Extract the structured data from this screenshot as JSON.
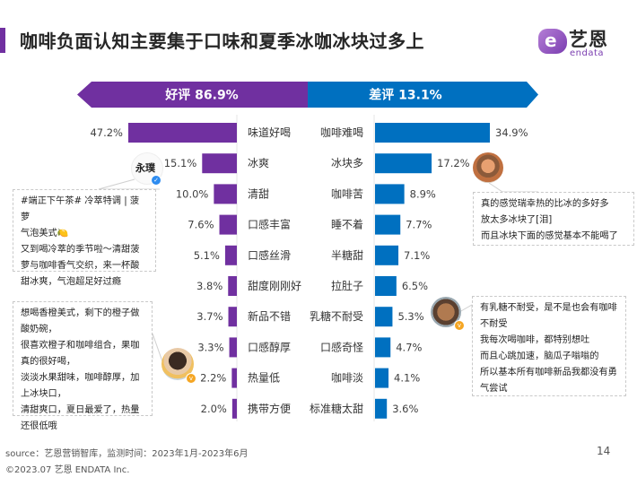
{
  "header": {
    "title": "咖啡负面认知主要集于口味和夏季冰咖冰块过多上",
    "logo_cn": "艺恩",
    "logo_en": "endata",
    "logo_glyph": "e"
  },
  "colors": {
    "positive": "#7030a0",
    "negative": "#0070c0",
    "accent": "#7030a0"
  },
  "chart_data": [
    {
      "type": "bar",
      "orientation": "horizontal",
      "title": "好评 86.9%",
      "banner_label": "好评",
      "banner_value": "86.9%",
      "share_percent": 86.9,
      "direction": "left",
      "categories": [
        "味道好喝",
        "冰爽",
        "清甜",
        "口感丰富",
        "口感丝滑",
        "甜度刚刚好",
        "新品不错",
        "口感醇厚",
        "热量低",
        "携带方便"
      ],
      "values": [
        47.2,
        15.1,
        10.0,
        7.6,
        5.1,
        3.8,
        3.7,
        3.3,
        2.2,
        2.0
      ],
      "value_labels": [
        "47.2%",
        "15.1%",
        "10.0%",
        "7.6%",
        "5.1%",
        "3.8%",
        "3.7%",
        "3.3%",
        "2.2%",
        "2.0%"
      ],
      "unit": "%",
      "color": "#7030a0"
    },
    {
      "type": "bar",
      "orientation": "horizontal",
      "title": "差评 13.1%",
      "banner_label": "差评",
      "banner_value": "13.1%",
      "share_percent": 13.1,
      "direction": "right",
      "categories": [
        "咖啡难喝",
        "冰块多",
        "咖啡苦",
        "睡不着",
        "半糖甜",
        "拉肚子",
        "乳糖不耐受",
        "口感奇怪",
        "咖啡淡",
        "标准糖太甜"
      ],
      "values": [
        34.9,
        17.2,
        8.9,
        7.7,
        7.1,
        6.5,
        5.3,
        4.7,
        4.1,
        3.6
      ],
      "value_labels": [
        "34.9%",
        "17.2%",
        "8.9%",
        "7.7%",
        "7.1%",
        "6.5%",
        "5.3%",
        "4.7%",
        "4.1%",
        "3.6%"
      ],
      "unit": "%",
      "color": "#0070c0"
    }
  ],
  "comments": [
    {
      "avatar_text": "永璞",
      "lines": [
        "#端正下午茶# 冷萃特调 | 菠萝",
        "气泡美式🍋",
        "又到喝冷萃的季节啦～清甜菠",
        "萝与咖啡香气交织，来一杯酸",
        "甜冰爽，气泡超足好过瘾"
      ]
    },
    {
      "avatar_text": "",
      "lines": [
        "想喝香橙美式，剩下的橙子做",
        "酸奶碗，",
        "很喜欢橙子和咖啡组合，果咖",
        "真的很好喝，",
        "淡淡水果甜味，咖啡醇厚，加",
        "上冰块口，",
        "清甜爽口，夏日最爱了，热量",
        "还很低哦"
      ]
    },
    {
      "avatar_text": "",
      "lines": [
        "真的感觉瑞幸热的比冰的多好多",
        "放太多冰块了[泪]",
        "而且冰块下面的感觉基本不能喝了"
      ]
    },
    {
      "avatar_text": "",
      "lines": [
        "有乳糖不耐受，是不是也会有咖啡",
        "不耐受",
        "我每次喝咖啡，都特别想吐",
        "而且心跳加速，脑瓜子嗡嗡的",
        "所以基本所有咖啡新品我都没有勇",
        "气尝试"
      ]
    }
  ],
  "footer": {
    "source": "source：艺恩营销智库，监测时间：2023年1月-2023年6月",
    "copyright": "©2023.07 艺恩 ENDATA Inc.",
    "page_number": "14"
  }
}
